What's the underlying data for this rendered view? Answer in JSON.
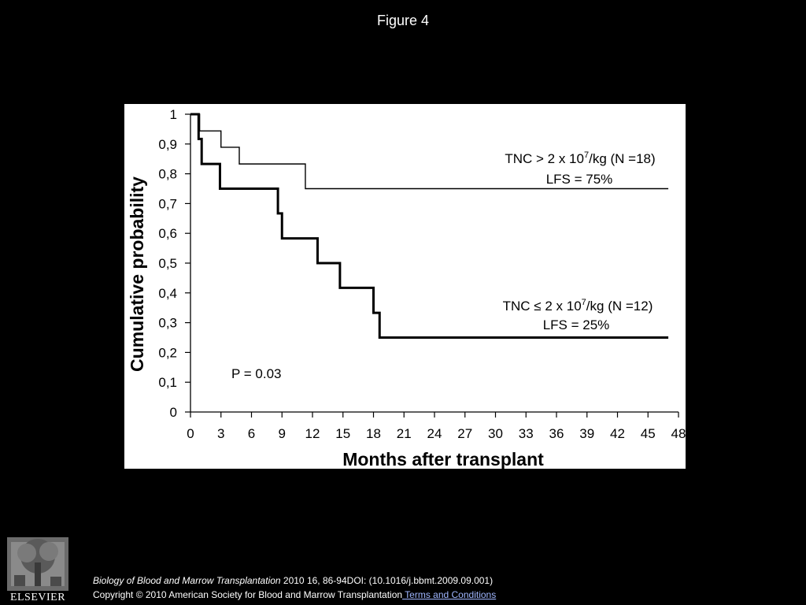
{
  "page": {
    "title": "Figure 4",
    "citation": {
      "journal": "Biology of Blood and Marrow Transplantation",
      "details": " 2010 16, 86-94DOI: (10.1016/j.bbmt.2009.09.001)"
    },
    "copyright": "Copyright © 2010 American Society for Blood and Marrow Transplantation",
    "terms_link": " Terms and Conditions",
    "logo_text": "ELSEVIER"
  },
  "chart_data": {
    "type": "line",
    "subtype": "kaplan-meier step",
    "xlabel": "Months after transplant",
    "ylabel": "Cumulative probability",
    "xlim": [
      0,
      48
    ],
    "ylim": [
      0,
      1
    ],
    "x_ticks": [
      "0",
      "3",
      "6",
      "9",
      "12",
      "15",
      "18",
      "21",
      "24",
      "27",
      "30",
      "33",
      "36",
      "39",
      "42",
      "45",
      "48"
    ],
    "y_ticks": [
      "0",
      "0,1",
      "0,2",
      "0,3",
      "0,4",
      "0,5",
      "0,6",
      "0,7",
      "0,8",
      "0,9",
      "1"
    ],
    "grid": false,
    "series": [
      {
        "label_parts": [
          "TNC > 2 x 10",
          "7",
          "/kg (N =18)"
        ],
        "stat": "LFS = 75%",
        "line_style": "thin",
        "steps": [
          [
            0,
            1
          ],
          [
            0.9,
            0.944
          ],
          [
            3,
            0.889
          ],
          [
            4.8,
            0.833
          ],
          [
            11.3,
            0.75
          ],
          [
            47,
            0.75
          ]
        ]
      },
      {
        "label_parts": [
          "TNC ≤ 2 x 10",
          "7",
          "/kg (N =12)"
        ],
        "stat": "LFS = 25%",
        "line_style": "thick",
        "steps": [
          [
            0,
            1
          ],
          [
            0.8,
            0.917
          ],
          [
            1.1,
            0.833
          ],
          [
            2.9,
            0.75
          ],
          [
            8.6,
            0.667
          ],
          [
            9.0,
            0.583
          ],
          [
            12.5,
            0.5
          ],
          [
            14.7,
            0.417
          ],
          [
            18.0,
            0.333
          ],
          [
            18.6,
            0.25
          ],
          [
            47,
            0.25
          ]
        ]
      }
    ],
    "annotations": [
      "P = 0.03"
    ],
    "color": "#000000",
    "background": "#ffffff"
  }
}
